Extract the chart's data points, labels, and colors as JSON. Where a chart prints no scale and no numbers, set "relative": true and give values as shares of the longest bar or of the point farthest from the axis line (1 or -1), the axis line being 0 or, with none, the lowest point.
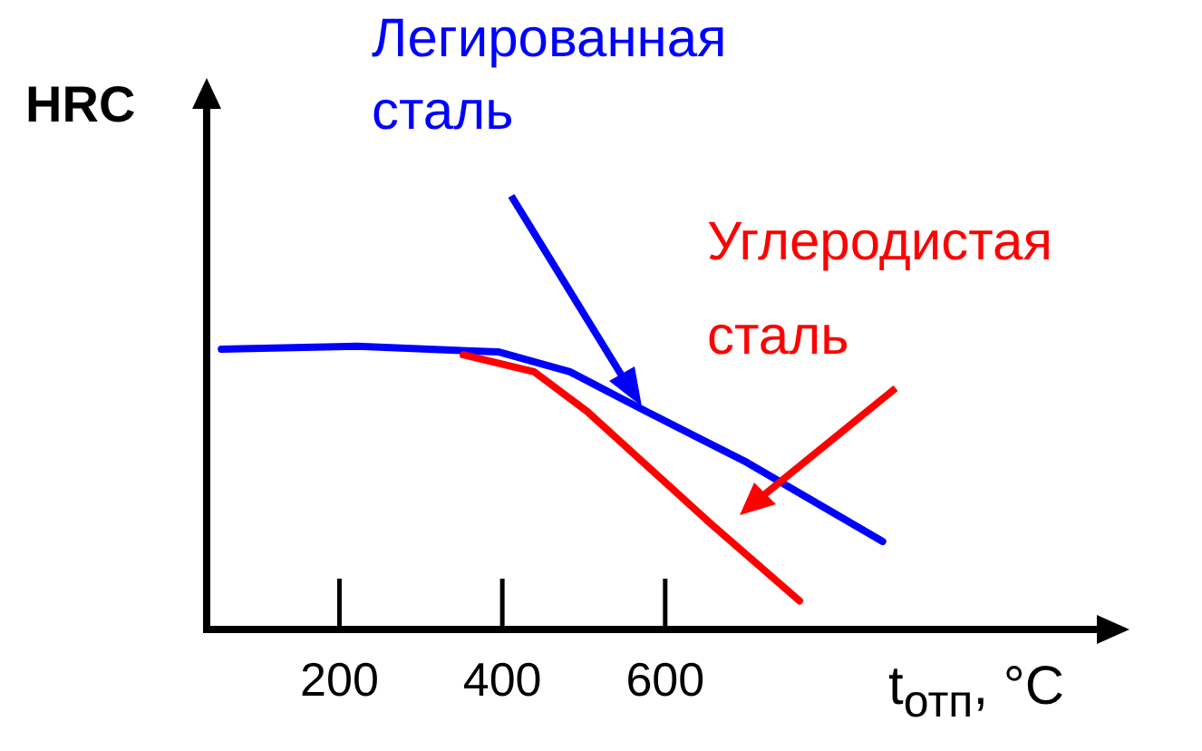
{
  "chart_data": {
    "type": "line",
    "relative": true,
    "xlabel": "t$_{отп}$, °C",
    "ylabel": "HRC",
    "xlim": [
      37,
      1130
    ],
    "xticks": [
      200,
      400,
      600
    ],
    "legend": false,
    "grid": false,
    "marker": "none",
    "line_style": "solid",
    "series": [
      {
        "name": "Легированная сталь",
        "color": "#0000ff",
        "x": [
          55,
          222,
          396,
          483,
          570,
          700,
          867
        ],
        "values": [
          0.99,
          1,
          0.98,
          0.91,
          0.78,
          0.59,
          0.31
        ]
      },
      {
        "name": "Углеродистая сталь",
        "color": "#ff0000",
        "x": [
          352,
          439,
          504,
          657,
          765
        ],
        "values": [
          0.97,
          0.91,
          0.77,
          0.37,
          0.1
        ]
      }
    ]
  }
}
